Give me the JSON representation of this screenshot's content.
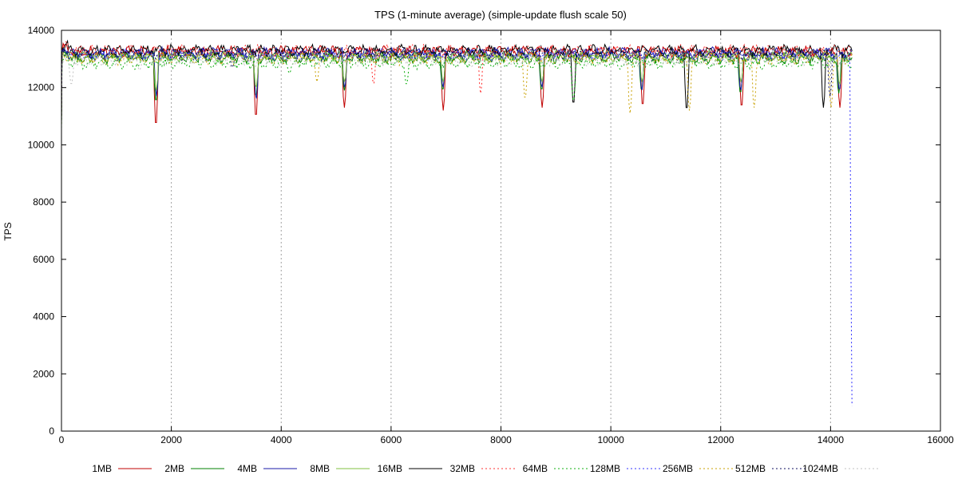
{
  "chart_data": {
    "type": "line",
    "title": "TPS (1-minute average) (simple-update flush scale 50)",
    "xlabel": "",
    "ylabel": "TPS",
    "xlim": [
      0,
      16000
    ],
    "ylim": [
      0,
      14000
    ],
    "x_ticks": [
      0,
      2000,
      4000,
      6000,
      8000,
      10000,
      12000,
      14000,
      16000
    ],
    "y_ticks": [
      0,
      2000,
      4000,
      6000,
      8000,
      10000,
      12000,
      14000
    ],
    "x_grid": true,
    "y_grid": false,
    "legend_position": "bottom",
    "series": [
      {
        "name": "1MB",
        "color": "#c00000",
        "dash": "solid",
        "base": 13250,
        "dips": [
          [
            1720,
            10650
          ],
          [
            3540,
            10950
          ],
          [
            5150,
            11300
          ],
          [
            6950,
            11200
          ],
          [
            8750,
            11300
          ],
          [
            10580,
            11350
          ],
          [
            12380,
            11300
          ],
          [
            14170,
            11300
          ]
        ]
      },
      {
        "name": "2MB",
        "color": "#008000",
        "dash": "solid",
        "base": 13050,
        "dips": [
          [
            1720,
            11500
          ],
          [
            3540,
            11700
          ],
          [
            5150,
            11900
          ],
          [
            6940,
            11900
          ],
          [
            8740,
            11900
          ],
          [
            10560,
            11900
          ],
          [
            12360,
            11800
          ],
          [
            14150,
            11800
          ]
        ]
      },
      {
        "name": "4MB",
        "color": "#1a1aa8",
        "dash": "solid",
        "base": 13200,
        "dips": [
          [
            1730,
            11700
          ],
          [
            3545,
            11600
          ],
          [
            5155,
            12000
          ],
          [
            6945,
            12000
          ],
          [
            8745,
            12000
          ],
          [
            10565,
            11900
          ],
          [
            12365,
            11900
          ],
          [
            14160,
            11900
          ]
        ]
      },
      {
        "name": "8MB",
        "color": "#80c040",
        "dash": "solid",
        "base": 13100,
        "dips": [
          [
            1725,
            11900
          ],
          [
            3542,
            12000
          ],
          [
            5152,
            12200
          ],
          [
            6948,
            12200
          ],
          [
            8748,
            12200
          ],
          [
            10570,
            12200
          ],
          [
            12370,
            12200
          ],
          [
            14165,
            12100
          ]
        ]
      },
      {
        "name": "16MB",
        "color": "#000000",
        "dash": "solid",
        "base": 13300,
        "dips": [
          [
            9320,
            11400
          ],
          [
            11380,
            11200
          ],
          [
            13870,
            11300
          ]
        ]
      },
      {
        "name": "32MB",
        "color": "#ff3030",
        "dash": "dotted",
        "base": 13300,
        "dips": [
          [
            5680,
            12100
          ],
          [
            7630,
            11800
          ]
        ]
      },
      {
        "name": "64MB",
        "color": "#10b010",
        "dash": "dotted",
        "base": 12850,
        "dips": [
          [
            4150,
            12500
          ],
          [
            6280,
            12100
          ],
          [
            9320,
            11500
          ]
        ]
      },
      {
        "name": "128MB",
        "color": "#3030ff",
        "dash": "dotted",
        "base": 13150,
        "dips": [
          [
            14400,
            250
          ]
        ]
      },
      {
        "name": "256MB",
        "color": "#c8a000",
        "dash": "dotted",
        "base": 13000,
        "dips": [
          [
            4650,
            12200
          ],
          [
            8440,
            11600
          ],
          [
            10350,
            11100
          ],
          [
            11430,
            11200
          ],
          [
            12610,
            11300
          ],
          [
            14010,
            11300
          ]
        ]
      },
      {
        "name": "512MB",
        "color": "#101060",
        "dash": "dotted",
        "base": 13150,
        "dips": [
          [
            3110,
            12700
          ],
          [
            13990,
            11700
          ]
        ]
      },
      {
        "name": "1024MB",
        "color": "#c0c0c0",
        "dash": "dotted",
        "base": 12950,
        "dips": [
          [
            180,
            12100
          ],
          [
            1420,
            12600
          ]
        ]
      }
    ]
  }
}
